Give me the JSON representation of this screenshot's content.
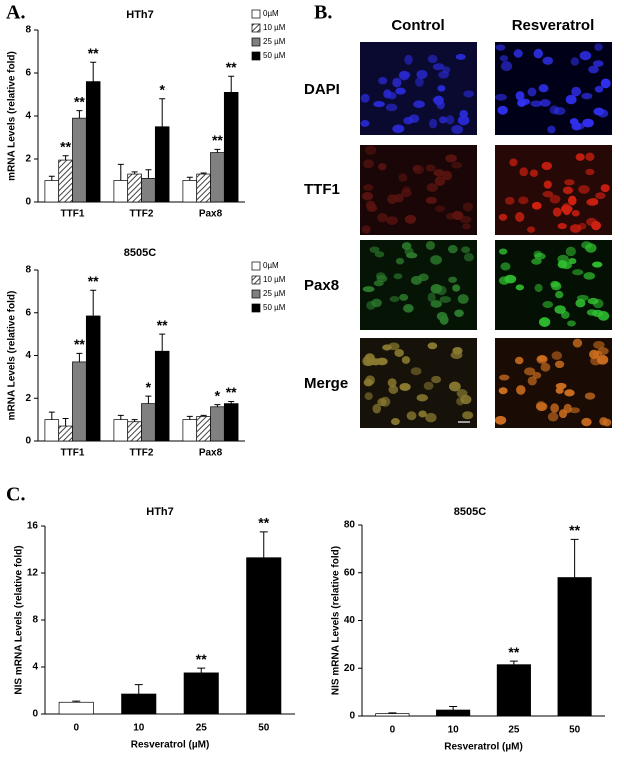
{
  "panel_labels": [
    "A.",
    "B.",
    "C."
  ],
  "microscopy": {
    "columns": [
      "Control",
      "Resveratrol"
    ],
    "rows": [
      "DAPI",
      "TTF1",
      "Pax8",
      "Merge"
    ]
  },
  "chart_data": [
    {
      "type": "grouped_bar",
      "title": "HTh7",
      "ylabel": "mRNA Levels (relative fold)",
      "categories": [
        "TTF1",
        "TTF2",
        "Pax8"
      ],
      "ylim": [
        0,
        8
      ],
      "yticks": [
        0,
        2,
        4,
        6,
        8
      ],
      "legend": "top-right",
      "series": [
        {
          "name": "0µM",
          "color": "#ffffff",
          "values": [
            1.0,
            1.0,
            1.0
          ],
          "errors": [
            0.2,
            0.75,
            0.15
          ],
          "stars": [
            null,
            null,
            null
          ]
        },
        {
          "name": "10 µM",
          "color": "#999999",
          "hatch": true,
          "values": [
            1.95,
            1.3,
            1.3
          ],
          "errors": [
            0.2,
            0.1,
            0.05
          ],
          "stars": [
            "**",
            null,
            null
          ]
        },
        {
          "name": "25 µM",
          "color": "#808080",
          "values": [
            3.9,
            1.1,
            2.3
          ],
          "errors": [
            0.35,
            0.4,
            0.15
          ],
          "stars": [
            "**",
            null,
            "**"
          ]
        },
        {
          "name": "50 µM",
          "color": "#000000",
          "values": [
            5.6,
            3.5,
            5.1
          ],
          "errors": [
            0.9,
            1.3,
            0.75
          ],
          "stars": [
            "**",
            "*",
            "**"
          ]
        }
      ]
    },
    {
      "type": "grouped_bar",
      "title": "8505C",
      "ylabel": "mRNA Levels (relative fold)",
      "categories": [
        "TTF1",
        "TTF2",
        "Pax8"
      ],
      "ylim": [
        0,
        8
      ],
      "yticks": [
        0,
        2,
        4,
        6,
        8
      ],
      "legend": "top-right",
      "series": [
        {
          "name": "0µM",
          "color": "#ffffff",
          "values": [
            1.0,
            1.0,
            1.0
          ],
          "errors": [
            0.35,
            0.2,
            0.15
          ],
          "stars": [
            null,
            null,
            null
          ]
        },
        {
          "name": "10 µM",
          "color": "#999999",
          "hatch": true,
          "values": [
            0.7,
            0.9,
            1.15
          ],
          "errors": [
            0.35,
            0.1,
            0.05
          ],
          "stars": [
            null,
            null,
            null
          ]
        },
        {
          "name": "25 µM",
          "color": "#808080",
          "values": [
            3.7,
            1.75,
            1.6
          ],
          "errors": [
            0.4,
            0.35,
            0.1
          ],
          "stars": [
            "**",
            "*",
            "*"
          ]
        },
        {
          "name": "50 µM",
          "color": "#000000",
          "values": [
            5.85,
            4.2,
            1.75
          ],
          "errors": [
            1.2,
            0.8,
            0.1
          ],
          "stars": [
            "**",
            "**",
            "**"
          ]
        }
      ]
    },
    {
      "type": "bar",
      "title": "HTh7",
      "ylabel": "NIS mRNA  Levels (relative fold)",
      "xlabel": "Resveratrol (µM)",
      "categories": [
        "0",
        "10",
        "25",
        "50"
      ],
      "values": [
        1.0,
        1.7,
        3.5,
        13.3
      ],
      "errors": [
        0.1,
        0.8,
        0.4,
        2.2
      ],
      "stars": [
        null,
        null,
        "**",
        "**"
      ],
      "colors": [
        "#ffffff",
        "#000000",
        "#000000",
        "#000000"
      ],
      "ylim": [
        0,
        16
      ],
      "yticks": [
        0,
        4,
        8,
        12,
        16
      ]
    },
    {
      "type": "bar",
      "title": "8505C",
      "ylabel": "NIS mRNA Levels (relative fold)",
      "xlabel": "Resveratrol (µM)",
      "categories": [
        "0",
        "10",
        "25",
        "50"
      ],
      "values": [
        1.0,
        2.5,
        21.5,
        58
      ],
      "errors": [
        0.3,
        1.5,
        1.5,
        16
      ],
      "stars": [
        null,
        null,
        "**",
        "**"
      ],
      "colors": [
        "#ffffff",
        "#000000",
        "#000000",
        "#000000"
      ],
      "ylim": [
        0,
        80
      ],
      "yticks": [
        0,
        20,
        40,
        60,
        80
      ]
    }
  ]
}
